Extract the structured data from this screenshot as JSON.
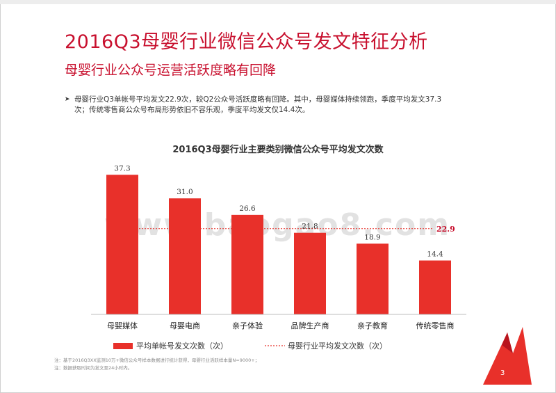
{
  "header": {
    "title": "2016Q3母婴行业微信公众号发文特征分析",
    "subtitle": "母婴行业公众号运营活跃度略有回降"
  },
  "bullet": {
    "line1": "母婴行业Q3单帐号平均发文22.9次，较Q2公众号活跃度略有回降。其中，母婴媒体持续领跑，季度平均发文37.3",
    "line2": "次；传统零售商公众号布局形势依旧不容乐观，季度平均发文仅14.4次。"
  },
  "chart_data": {
    "type": "bar",
    "title": "2016Q3母婴行业主要类别微信公众号平均发文次数",
    "categories": [
      "母婴媒体",
      "母婴电商",
      "亲子体验",
      "品牌生产商",
      "亲子教育",
      "传统零售商"
    ],
    "values": [
      37.3,
      31.0,
      26.6,
      21.8,
      18.9,
      14.4
    ],
    "value_labels": [
      "37.3",
      "31.0",
      "26.6",
      "21.8",
      "18.9",
      "14.4"
    ],
    "average": 22.9,
    "average_label": "22.9",
    "ylim": [
      0,
      42
    ],
    "legend": {
      "bar_label": "平均单帐号发文次数（次）",
      "line_label": "母婴行业平均发文次数（次）"
    },
    "colors": {
      "bar": "#e8302a",
      "average": "#e8302a",
      "title": "#c8102e"
    }
  },
  "watermark": "www.baogao8.com",
  "notes": {
    "line1": "注：基于2016Q3XX监测10万+微信公众号样本数据进行统计获得，母婴行业活跃样本量N=9000+；",
    "line2": "注：数据获取时间为发文至24小时内。"
  },
  "page_number": "3"
}
